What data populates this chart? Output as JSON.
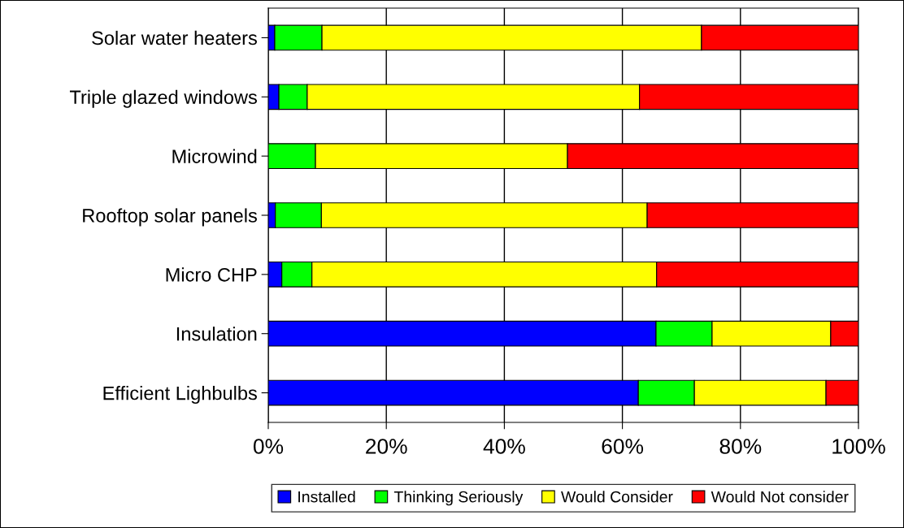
{
  "chart_data": {
    "type": "bar",
    "orientation": "horizontal",
    "stacked": true,
    "categories": [
      "Solar water heaters",
      "Triple glazed windows",
      "Microwind",
      "Rooftop solar panels",
      "Micro CHP",
      "Insulation",
      "Efficient Lighbulbs"
    ],
    "series": [
      {
        "name": "Installed",
        "color": "#0000ff",
        "values": [
          1.1,
          1.8,
          0,
          1.2,
          2.3,
          65.7,
          62.7
        ]
      },
      {
        "name": "Thinking Seriously",
        "color": "#00ff00",
        "values": [
          8.0,
          4.8,
          8.0,
          7.8,
          5.1,
          9.5,
          9.5
        ]
      },
      {
        "name": "Would Consider",
        "color": "#ffff00",
        "values": [
          64.3,
          56.3,
          42.7,
          55.2,
          58.4,
          20.1,
          22.3
        ]
      },
      {
        "name": "Would Not consider",
        "color": "#ff0000",
        "values": [
          26.6,
          37.1,
          49.3,
          35.8,
          34.2,
          4.7,
          5.5
        ]
      }
    ],
    "xlim": [
      0,
      100
    ],
    "xticks": [
      {
        "value": 0,
        "label": "0%"
      },
      {
        "value": 20,
        "label": "20%"
      },
      {
        "value": 40,
        "label": "40%"
      },
      {
        "value": 60,
        "label": "60%"
      },
      {
        "value": 80,
        "label": "80%"
      },
      {
        "value": 100,
        "label": "100%"
      }
    ],
    "grid": "x",
    "legend": "bottom"
  }
}
